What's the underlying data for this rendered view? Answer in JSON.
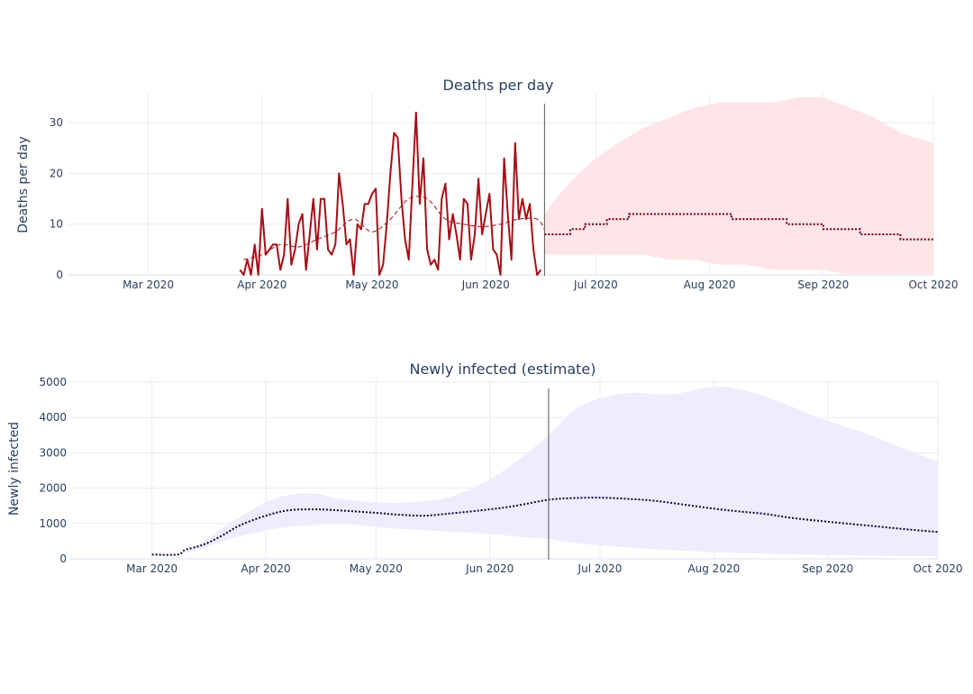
{
  "chart_data": [
    {
      "type": "line",
      "title": "Deaths per day",
      "xlabel": "",
      "ylabel": "Deaths per day",
      "x_range": [
        "2020-02-08",
        "2020-10-01"
      ],
      "ylim": [
        0,
        35
      ],
      "yticks": [
        0,
        10,
        20,
        30
      ],
      "xticks": [
        {
          "date": "2020-03-01",
          "label": "Mar 2020"
        },
        {
          "date": "2020-04-01",
          "label": "Apr 2020"
        },
        {
          "date": "2020-05-01",
          "label": "May 2020"
        },
        {
          "date": "2020-06-01",
          "label": "Jun 2020"
        },
        {
          "date": "2020-07-01",
          "label": "Jul 2020"
        },
        {
          "date": "2020-08-01",
          "label": "Aug 2020"
        },
        {
          "date": "2020-09-01",
          "label": "Sep 2020"
        },
        {
          "date": "2020-10-01",
          "label": "Oct 2020"
        }
      ],
      "vline_date": "2020-06-17",
      "grid": true,
      "colors": {
        "observed": "#a50f15",
        "average": "#a50f15",
        "forecast": "#67000d",
        "band": "#ffe4e8"
      },
      "observed": {
        "x": [
          "2020-03-26",
          "2020-03-27",
          "2020-03-28",
          "2020-03-29",
          "2020-03-30",
          "2020-03-31",
          "2020-04-01",
          "2020-04-02",
          "2020-04-03",
          "2020-04-04",
          "2020-04-05",
          "2020-04-06",
          "2020-04-07",
          "2020-04-08",
          "2020-04-09",
          "2020-04-10",
          "2020-04-11",
          "2020-04-12",
          "2020-04-13",
          "2020-04-14",
          "2020-04-15",
          "2020-04-16",
          "2020-04-17",
          "2020-04-18",
          "2020-04-19",
          "2020-04-20",
          "2020-04-21",
          "2020-04-22",
          "2020-04-23",
          "2020-04-24",
          "2020-04-25",
          "2020-04-26",
          "2020-04-27",
          "2020-04-28",
          "2020-04-29",
          "2020-04-30",
          "2020-05-01",
          "2020-05-02",
          "2020-05-03",
          "2020-05-04",
          "2020-05-05",
          "2020-05-06",
          "2020-05-07",
          "2020-05-08",
          "2020-05-09",
          "2020-05-10",
          "2020-05-11",
          "2020-05-12",
          "2020-05-13",
          "2020-05-14",
          "2020-05-15",
          "2020-05-16",
          "2020-05-17",
          "2020-05-18",
          "2020-05-19",
          "2020-05-20",
          "2020-05-21",
          "2020-05-22",
          "2020-05-23",
          "2020-05-24",
          "2020-05-25",
          "2020-05-26",
          "2020-05-27",
          "2020-05-28",
          "2020-05-29",
          "2020-05-30",
          "2020-05-31",
          "2020-06-01",
          "2020-06-02",
          "2020-06-03",
          "2020-06-04",
          "2020-06-05",
          "2020-06-06",
          "2020-06-07",
          "2020-06-08",
          "2020-06-09",
          "2020-06-10",
          "2020-06-11",
          "2020-06-12",
          "2020-06-13",
          "2020-06-14",
          "2020-06-15",
          "2020-06-16"
        ],
        "y": [
          1,
          0,
          3,
          0,
          6,
          0,
          13,
          4,
          5,
          6,
          6,
          1,
          4,
          15,
          2,
          5,
          10,
          12,
          1,
          8,
          15,
          5,
          15,
          15,
          5,
          4,
          6,
          20,
          14,
          6,
          7,
          0,
          10,
          9,
          14,
          14,
          16,
          17,
          0,
          2,
          10,
          20,
          28,
          27,
          15,
          7,
          3,
          18,
          32,
          14,
          23,
          5,
          2,
          3,
          1,
          15,
          18,
          7,
          12,
          8,
          3,
          15,
          14,
          3,
          8,
          19,
          8,
          12,
          16,
          5,
          4,
          0,
          23,
          12,
          3,
          26,
          11,
          15,
          11,
          14,
          5,
          0,
          1
        ],
        "label_visible": false
      },
      "average": {
        "x": [
          "2020-03-27",
          "2020-04-01",
          "2020-04-06",
          "2020-04-11",
          "2020-04-16",
          "2020-04-21",
          "2020-04-26",
          "2020-05-01",
          "2020-05-06",
          "2020-05-11",
          "2020-05-16",
          "2020-05-21",
          "2020-05-26",
          "2020-05-31",
          "2020-06-05",
          "2020-06-10",
          "2020-06-15",
          "2020-06-17"
        ],
        "y": [
          3,
          4,
          6,
          5.5,
          7,
          8.5,
          11,
          8.5,
          11,
          15,
          15,
          11,
          10,
          9.5,
          10,
          11,
          11,
          9
        ]
      },
      "forecast": {
        "x": [
          "2020-06-17",
          "2020-06-18",
          "2020-06-24",
          "2020-06-28",
          "2020-07-04",
          "2020-07-10",
          "2020-08-01",
          "2020-08-07",
          "2020-08-20",
          "2020-08-22",
          "2020-09-01",
          "2020-09-11",
          "2020-09-22",
          "2020-10-01"
        ],
        "y": [
          8,
          8,
          9,
          10,
          11,
          12,
          12,
          11,
          11,
          10,
          9,
          8,
          7,
          7
        ]
      },
      "band": {
        "x": [
          "2020-06-17",
          "2020-06-20",
          "2020-06-25",
          "2020-07-01",
          "2020-07-07",
          "2020-07-14",
          "2020-07-21",
          "2020-07-28",
          "2020-08-04",
          "2020-08-11",
          "2020-08-18",
          "2020-08-25",
          "2020-09-01",
          "2020-09-08",
          "2020-09-15",
          "2020-09-22",
          "2020-10-01"
        ],
        "lower": [
          4,
          4,
          4,
          4,
          4,
          4,
          3,
          3,
          2,
          2,
          1,
          1,
          1,
          0,
          0,
          0,
          0
        ],
        "upper": [
          12,
          15,
          19,
          23,
          26,
          29,
          31,
          33,
          34,
          34,
          34,
          35,
          35,
          33,
          31,
          28,
          26
        ]
      }
    },
    {
      "type": "line",
      "title": "Newly infected (estimate)",
      "xlabel": "",
      "ylabel": "Newly infected",
      "x_range": [
        "2020-02-08",
        "2020-10-01"
      ],
      "ylim": [
        0,
        5000
      ],
      "yticks": [
        0,
        1000,
        2000,
        3000,
        4000,
        5000
      ],
      "xticks": [
        {
          "date": "2020-03-01",
          "label": "Mar 2020"
        },
        {
          "date": "2020-04-01",
          "label": "Apr 2020"
        },
        {
          "date": "2020-05-01",
          "label": "May 2020"
        },
        {
          "date": "2020-06-01",
          "label": "Jun 2020"
        },
        {
          "date": "2020-07-01",
          "label": "Jul 2020"
        },
        {
          "date": "2020-08-01",
          "label": "Aug 2020"
        },
        {
          "date": "2020-09-01",
          "label": "Sep 2020"
        },
        {
          "date": "2020-10-01",
          "label": "Oct 2020"
        }
      ],
      "vline_date": "2020-06-17",
      "grid": true,
      "colors": {
        "estimate": "#1a0033",
        "band": "#efedfd"
      },
      "estimate": {
        "x": [
          "2020-03-01",
          "2020-03-08",
          "2020-03-10",
          "2020-03-15",
          "2020-03-20",
          "2020-03-25",
          "2020-04-01",
          "2020-04-07",
          "2020-04-14",
          "2020-04-21",
          "2020-05-01",
          "2020-05-07",
          "2020-05-14",
          "2020-05-21",
          "2020-06-01",
          "2020-06-08",
          "2020-06-17",
          "2020-06-24",
          "2020-07-01",
          "2020-07-08",
          "2020-07-15",
          "2020-07-22",
          "2020-08-01",
          "2020-08-08",
          "2020-08-15",
          "2020-08-22",
          "2020-09-01",
          "2020-09-08",
          "2020-09-15",
          "2020-09-22",
          "2020-10-01"
        ],
        "y": [
          120,
          120,
          250,
          400,
          650,
          950,
          1220,
          1370,
          1400,
          1370,
          1300,
          1250,
          1220,
          1280,
          1400,
          1500,
          1670,
          1720,
          1730,
          1700,
          1650,
          1560,
          1420,
          1340,
          1270,
          1160,
          1050,
          980,
          910,
          840,
          760
        ]
      },
      "band": {
        "x": [
          "2020-03-01",
          "2020-03-08",
          "2020-03-15",
          "2020-03-22",
          "2020-04-01",
          "2020-04-07",
          "2020-04-14",
          "2020-04-21",
          "2020-05-01",
          "2020-05-10",
          "2020-05-21",
          "2020-06-01",
          "2020-06-10",
          "2020-06-17",
          "2020-06-24",
          "2020-07-01",
          "2020-07-10",
          "2020-07-20",
          "2020-08-01",
          "2020-08-10",
          "2020-08-20",
          "2020-09-01",
          "2020-09-10",
          "2020-09-20",
          "2020-10-01"
        ],
        "lower": [
          120,
          120,
          300,
          550,
          800,
          900,
          950,
          1000,
          900,
          830,
          770,
          700,
          610,
          560,
          450,
          380,
          310,
          250,
          190,
          160,
          130,
          110,
          95,
          80,
          70
        ],
        "upper": [
          120,
          120,
          500,
          1000,
          1600,
          1800,
          1850,
          1700,
          1600,
          1600,
          1750,
          2250,
          2900,
          3500,
          4200,
          4550,
          4700,
          4650,
          4870,
          4750,
          4400,
          3900,
          3600,
          3200,
          2750
        ]
      }
    }
  ]
}
